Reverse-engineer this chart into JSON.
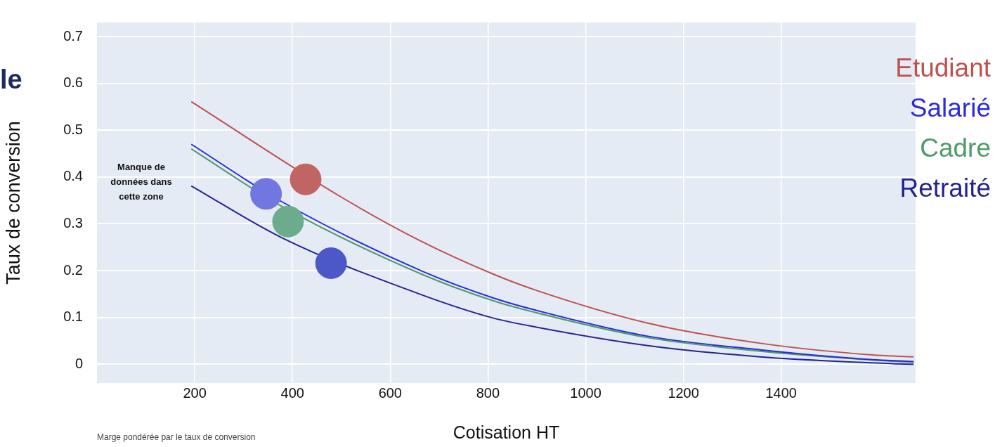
{
  "chart_data": {
    "type": "line",
    "xlabel": "Cotisation HT",
    "ylabel": "Taux de conversion",
    "xlim": [
      0,
      1675
    ],
    "xticks": [
      200,
      400,
      600,
      800,
      1000,
      1200,
      1400
    ],
    "ylim": [
      -0.04,
      0.73
    ],
    "yticks": [
      0,
      0.1,
      0.2,
      0.3,
      0.4,
      0.5,
      0.6,
      0.7
    ],
    "grid": true,
    "legend": "right",
    "marker": "none",
    "line_style": "solid",
    "annotations": [
      "Manque de données dans cette zone",
      "Marge pondérée par le taux de conversion",
      "le"
    ],
    "series": [
      {
        "name": "Etudiant",
        "color": "#c0504d",
        "x": [
          193,
          500,
          663,
          810,
          896,
          1127,
          1357,
          1587,
          1671
        ],
        "values": [
          0.561,
          0.357,
          0.263,
          0.193,
          0.159,
          0.088,
          0.045,
          0.02,
          0.016
        ]
      },
      {
        "name": "Salarié",
        "color": "#2a2ae0",
        "x": [
          193,
          377,
          663,
          810,
          896,
          1127,
          1357,
          1587,
          1671
        ],
        "values": [
          0.47,
          0.348,
          0.2,
          0.142,
          0.116,
          0.06,
          0.031,
          0.01,
          0.006
        ]
      },
      {
        "name": "Cadre",
        "color": "#4e9a68",
        "x": [
          193,
          377,
          663,
          810,
          896,
          1127,
          1357,
          1587,
          1671
        ],
        "values": [
          0.46,
          0.338,
          0.193,
          0.136,
          0.111,
          0.057,
          0.028,
          0.009,
          0.004
        ]
      },
      {
        "name": "Retraité",
        "color": "#24248f",
        "x": [
          193,
          377,
          663,
          810,
          896,
          1127,
          1357,
          1587,
          1671
        ],
        "values": [
          0.381,
          0.271,
          0.149,
          0.099,
          0.08,
          0.04,
          0.016,
          0.003,
          0
        ]
      },
      {
        "color": "#c06464",
        "type": "scatter",
        "marker": "circle",
        "x": [
          427
        ],
        "values": [
          0.395
        ]
      },
      {
        "color": "#7276e0",
        "type": "scatter",
        "marker": "circle",
        "x": [
          346
        ],
        "values": [
          0.364
        ]
      },
      {
        "color": "#6aac8c",
        "type": "scatter",
        "marker": "circle",
        "x": [
          391
        ],
        "values": [
          0.305
        ]
      },
      {
        "color": "#4d58c8",
        "type": "scatter",
        "marker": "circle",
        "x": [
          479
        ],
        "values": [
          0.216
        ]
      }
    ]
  }
}
